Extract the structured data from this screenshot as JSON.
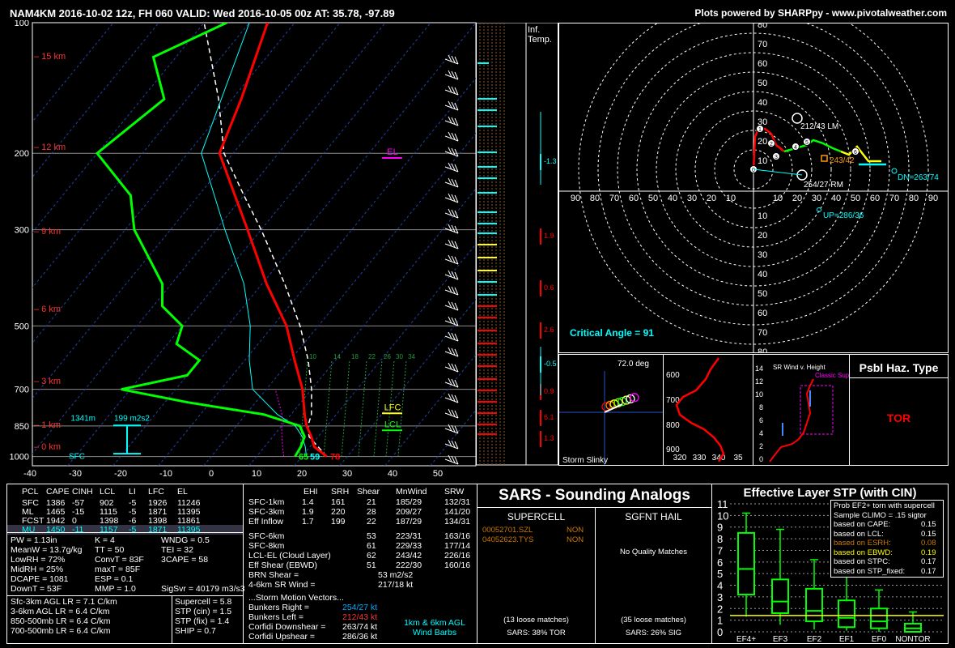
{
  "header": {
    "title": "NAM4KM 2016-10-02 12z, FH 060   VALID: Wed 2016-10-05 00z   AT: 35.78, -97.89",
    "credit": "Plots powered by SHARPpy - www.pivotalweather.com"
  },
  "colors": {
    "temp": "#ff0000",
    "dew": "#00ff00",
    "parcel": "#ffffff",
    "wetbulb": "#00ffff",
    "cyan": "#00ffff",
    "yellow": "#ffff00",
    "magenta": "#ff00ff"
  },
  "chart_data": [
    {
      "type": "line",
      "name": "skew-t",
      "pressure_ticks": [
        "100",
        "200",
        "300",
        "500",
        "700",
        "850",
        "1000"
      ],
      "height_labels": [
        "15 km",
        "12 km",
        "9 km",
        "6 km",
        "3 km",
        "1 km",
        "0 km"
      ],
      "temp_ticks": [
        "-40",
        "-30",
        "-20",
        "-10",
        "0",
        "10",
        "20",
        "30",
        "40",
        "50"
      ],
      "mixing_ratio_labels": [
        "10",
        "14",
        "18",
        "22",
        "26",
        "30",
        "34"
      ],
      "annotations": {
        "el": "EL",
        "lfc": "LFC",
        "lcl": "LCL",
        "sfc": "SFC",
        "depth": "1341m",
        "srh": "199 m2s2",
        "sfc_t": "78",
        "sfc_td": "65",
        "sfc_tw": "59"
      },
      "series": [
        {
          "key": "temp",
          "values": [
            [
              1000,
              25.5
            ],
            [
              950,
              21
            ],
            [
              900,
              18.5
            ],
            [
              850,
              15.5
            ],
            [
              800,
              13
            ],
            [
              700,
              8
            ],
            [
              600,
              1
            ],
            [
              500,
              -7
            ],
            [
              400,
              -19
            ],
            [
              300,
              -33
            ],
            [
              250,
              -42
            ],
            [
              200,
              -53
            ],
            [
              150,
              -58
            ],
            [
              100,
              -66
            ]
          ]
        },
        {
          "key": "dew",
          "values": [
            [
              1000,
              18.5
            ],
            [
              950,
              18
            ],
            [
              900,
              17
            ],
            [
              850,
              14
            ],
            [
              800,
              4
            ],
            [
              750,
              -15
            ],
            [
              700,
              -32
            ],
            [
              650,
              -20
            ],
            [
              600,
              -20
            ],
            [
              550,
              -28
            ],
            [
              500,
              -30
            ],
            [
              450,
              -38
            ],
            [
              400,
              -42
            ],
            [
              300,
              -58
            ],
            [
              250,
              -65
            ],
            [
              200,
              -80
            ],
            [
              150,
              -75
            ],
            [
              120,
              -85
            ],
            [
              100,
              -75
            ]
          ]
        }
      ]
    },
    {
      "type": "scatter",
      "name": "hodograph",
      "axis_ticks": [
        "10",
        "20",
        "30",
        "40",
        "50",
        "60",
        "70",
        "80",
        "90"
      ],
      "labels": {
        "lm": "212/43 LM",
        "rm": "254/27 RM",
        "dn": "DN=263/74",
        "up": "UP=286/36",
        "mean": "243/42",
        "critical": "Critical Angle = 91"
      }
    }
  ],
  "inference": {
    "title1": "Inf.",
    "title2": "Temp.",
    "values": [
      "-1.3",
      "1.9",
      "0.6",
      "2.6",
      "-0.5",
      "0.9",
      "6.1",
      "1.3"
    ]
  },
  "slinky": {
    "angle": "72.0 deg",
    "label": "Storm Slinky"
  },
  "theta_e": {
    "y_ticks": [
      "600",
      "700",
      "800",
      "900"
    ],
    "x_ticks": [
      "320",
      "330",
      "340",
      "35"
    ]
  },
  "sr_wind": {
    "title": "SR Wind v. Height",
    "classic": "Classic Supercell",
    "y_ticks": [
      "14",
      "12",
      "10",
      "8",
      "6",
      "4",
      "2",
      "0"
    ]
  },
  "hazard": {
    "title": "Psbl Haz. Type",
    "value": "TOR"
  },
  "parcels": {
    "headers": [
      "PCL",
      "CAPE",
      "CINH",
      "LCL",
      "LI",
      "LFC",
      "EL"
    ],
    "rows": [
      [
        "SFC",
        "1386",
        "-57",
        "902",
        "-5",
        "1926",
        "11246"
      ],
      [
        "ML",
        "1465",
        "-15",
        "1115",
        "-5",
        "1871",
        "11395"
      ],
      [
        "FCST",
        "1942",
        "0",
        "1398",
        "-6",
        "1398",
        "11861"
      ],
      [
        "MU",
        "1450",
        "-11",
        "1157",
        "-5",
        "1871",
        "11395"
      ]
    ]
  },
  "indices": [
    [
      "PW = 1.13in",
      "K = 4",
      "WNDG = 0.5"
    ],
    [
      "MeanW = 13.7g/kg",
      "TT = 50",
      "TEI = 32"
    ],
    [
      "LowRH = 72%",
      "ConvT = 83F",
      "3CAPE = 58"
    ],
    [
      "MidRH = 25%",
      "maxT = 85F",
      ""
    ],
    [
      "DCAPE = 1081",
      "ESP = 0.1",
      ""
    ],
    [
      "DownT = 53F",
      "MMP = 1.0",
      "SigSvr = 40179 m3/s3"
    ]
  ],
  "lapse": [
    "Sfc-3km AGL LR = 7.1 C/km",
    "3-6km AGL LR = 6.4 C/km",
    "850-500mb LR = 6.4 C/km",
    "700-500mb LR = 6.4 C/km"
  ],
  "params": [
    "Supercell = 5.8",
    "STP (cin) = 1.5",
    "STP (fix) = 1.4",
    "SHIP = 0.7"
  ],
  "kinematics": {
    "headers": [
      "EHI",
      "SRH",
      "Shear",
      "MnWind",
      "SRW"
    ],
    "rows": [
      [
        "SFC-1km",
        "1.4",
        "161",
        "21",
        "185/29",
        "132/31"
      ],
      [
        "SFC-3km",
        "1.9",
        "220",
        "28",
        "209/27",
        "141/20"
      ],
      [
        "Eff Inflow",
        "1.7",
        "199",
        "22",
        "187/29",
        "134/31"
      ],
      [
        "SFC-6km",
        "",
        "",
        "53",
        "223/31",
        "163/16"
      ],
      [
        "SFC-8km",
        "",
        "",
        "61",
        "229/33",
        "177/14"
      ],
      [
        "LCL-EL (Cloud Layer)",
        "",
        "",
        "62",
        "243/42",
        "226/16"
      ],
      [
        "Eff Shear (EBWD)",
        "",
        "",
        "51",
        "222/30",
        "160/16"
      ]
    ],
    "brn": [
      "BRN Shear =",
      "53 m2/s2"
    ],
    "srwind": [
      "4-6km SR Wind =",
      "217/18 kt"
    ],
    "motion_title": "...Storm Motion Vectors...",
    "motions": [
      [
        "Bunkers Right =",
        "254/27 kt"
      ],
      [
        "Bunkers Left =",
        "212/43 kt"
      ],
      [
        "Corfidi Downshear =",
        "263/74 kt"
      ],
      [
        "Corfidi Upshear =",
        "286/36 kt"
      ]
    ],
    "barb_legend1": "1km & 6km AGL",
    "barb_legend2": "Wind Barbs"
  },
  "sars": {
    "title": "SARS - Sounding Analogs",
    "supercell": "SUPERCELL",
    "hail": "SGFNT HAIL",
    "matches": [
      [
        "00052701.SZL",
        "NON"
      ],
      [
        "04052623.TYS",
        "NON"
      ]
    ],
    "no_hail": "No Quality Matches",
    "sc_loose": "(13 loose matches)",
    "sc_pct": "SARS: 38% TOR",
    "hail_loose": "(35 loose matches)",
    "hail_pct": "SARS: 26% SIG"
  },
  "stp": {
    "title": "Effective Layer STP (with CIN)",
    "y_ticks": [
      "11",
      "10",
      "9",
      "8",
      "7",
      "6",
      "5",
      "4",
      "3",
      "2",
      "1",
      "0"
    ],
    "categories": [
      "EF4+",
      "EF3",
      "EF2",
      "EF1",
      "EF0",
      "NONTOR"
    ],
    "legend_title1": "Prob EF2+ torn with supercell",
    "legend_title2": "Sample CLIMO = .15 sigtor",
    "legend": [
      [
        "based on CAPE:",
        "0.15"
      ],
      [
        "based on LCL:",
        "0.15"
      ],
      [
        "based on ESRH:",
        "0.08"
      ],
      [
        "based on EBWD:",
        "0.19"
      ],
      [
        "based on STPC:",
        "0.17"
      ],
      [
        "based on STP_fixed:",
        "0.17"
      ]
    ]
  }
}
